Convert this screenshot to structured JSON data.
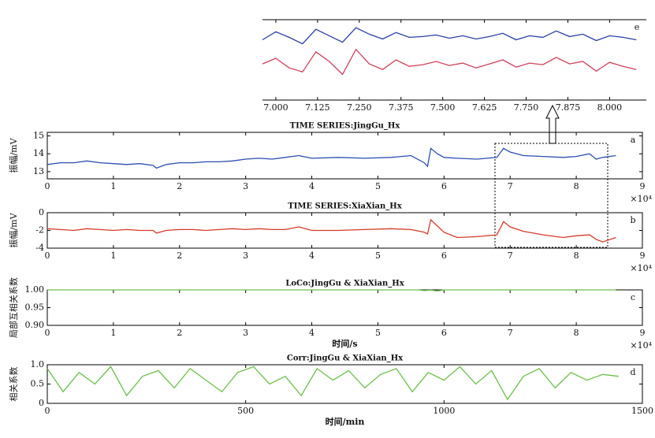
{
  "chart_data": [
    {
      "type": "line",
      "annotation": "e",
      "xlim": [
        6.96,
        8.11
      ],
      "xticks": [
        {
          "value": 7,
          "label": "7.000"
        },
        {
          "value": 7.125,
          "label": "7.125"
        },
        {
          "value": 7.25,
          "label": "7.250"
        },
        {
          "value": 7.375,
          "label": "7.375"
        },
        {
          "value": 7.5,
          "label": "7.500"
        },
        {
          "value": 7.625,
          "label": "7.625"
        },
        {
          "value": 7.75,
          "label": "7.750"
        },
        {
          "value": 7.875,
          "label": "7.875"
        },
        {
          "value": 8,
          "label": "8.000"
        }
      ],
      "ylim": [
        0,
        10
      ],
      "x": [
        6.96,
        7.0,
        7.04,
        7.08,
        7.12,
        7.16,
        7.2,
        7.24,
        7.28,
        7.32,
        7.36,
        7.4,
        7.44,
        7.48,
        7.52,
        7.56,
        7.6,
        7.64,
        7.68,
        7.72,
        7.76,
        7.8,
        7.84,
        7.88,
        7.92,
        7.96,
        8.0,
        8.04,
        8.08
      ],
      "series": [
        {
          "color": "#2b3fa6",
          "values": [
            7.5,
            8.5,
            7.8,
            7.0,
            8.8,
            8.0,
            7.2,
            9.0,
            8.2,
            7.6,
            8.4,
            7.8,
            7.9,
            8.1,
            7.7,
            8.0,
            7.6,
            7.9,
            8.3,
            7.5,
            8.0,
            7.8,
            8.6,
            7.9,
            8.2,
            7.4,
            8.0,
            7.8,
            7.5
          ]
        },
        {
          "color": "#d0405a",
          "values": [
            4.5,
            5.2,
            4.0,
            3.5,
            6.0,
            4.8,
            3.2,
            6.3,
            4.5,
            3.8,
            5.0,
            4.2,
            4.4,
            4.8,
            4.3,
            4.6,
            4.0,
            4.5,
            5.0,
            4.1,
            4.6,
            4.4,
            5.3,
            4.5,
            4.8,
            3.6,
            4.7,
            4.2,
            3.8
          ]
        }
      ]
    },
    {
      "type": "line",
      "title": "TIME SERIES:JingGu_Hx",
      "ylabel": "振幅/mV",
      "annotation": "a",
      "x_multiplier": "×10⁴",
      "xlim": [
        0,
        9
      ],
      "xticks": [
        0,
        1,
        2,
        3,
        4,
        5,
        6,
        7,
        8,
        9
      ],
      "ylim": [
        12.6,
        15.2
      ],
      "yticks": [
        13,
        14,
        15
      ],
      "x": [
        0,
        0.2,
        0.4,
        0.6,
        0.8,
        1.0,
        1.2,
        1.4,
        1.6,
        1.65,
        1.8,
        2.0,
        2.2,
        2.4,
        2.6,
        2.8,
        3.0,
        3.2,
        3.4,
        3.6,
        3.8,
        4.0,
        4.4,
        4.8,
        5.2,
        5.5,
        5.7,
        5.75,
        5.8,
        5.9,
        6.0,
        6.2,
        6.5,
        6.8,
        6.9,
        7.0,
        7.2,
        7.5,
        7.8,
        8.0,
        8.2,
        8.3,
        8.4,
        8.6
      ],
      "series": [
        {
          "color": "#2b4fb0",
          "values": [
            13.4,
            13.5,
            13.5,
            13.6,
            13.5,
            13.45,
            13.4,
            13.45,
            13.35,
            13.2,
            13.4,
            13.5,
            13.5,
            13.55,
            13.55,
            13.6,
            13.7,
            13.75,
            13.7,
            13.8,
            13.9,
            13.75,
            13.8,
            13.75,
            13.8,
            13.9,
            13.5,
            13.3,
            14.3,
            14.0,
            13.8,
            13.75,
            13.7,
            13.8,
            14.3,
            14.1,
            13.9,
            13.85,
            13.8,
            13.85,
            14.0,
            13.7,
            13.8,
            13.9
          ]
        }
      ]
    },
    {
      "type": "line",
      "title": "TIME SERIES:XiaXian_Hx",
      "ylabel": "振幅/mV",
      "annotation": "b",
      "x_multiplier": "×10⁴",
      "xlim": [
        0,
        9
      ],
      "xticks": [
        0,
        1,
        2,
        3,
        4,
        5,
        6,
        7,
        8,
        9
      ],
      "ylim": [
        -4,
        0
      ],
      "yticks": [
        -4,
        -2,
        0
      ],
      "x": [
        0,
        0.2,
        0.4,
        0.6,
        0.8,
        1.0,
        1.2,
        1.4,
        1.6,
        1.65,
        1.8,
        2.0,
        2.2,
        2.4,
        2.6,
        2.8,
        3.0,
        3.2,
        3.4,
        3.6,
        3.8,
        4.0,
        4.4,
        4.8,
        5.2,
        5.5,
        5.7,
        5.75,
        5.8,
        5.9,
        6.0,
        6.2,
        6.5,
        6.8,
        6.9,
        7.0,
        7.2,
        7.5,
        7.8,
        8.0,
        8.2,
        8.3,
        8.4,
        8.6
      ],
      "series": [
        {
          "color": "#d63a2a",
          "values": [
            -1.8,
            -1.9,
            -2.0,
            -1.8,
            -1.9,
            -2.0,
            -1.9,
            -2.0,
            -2.0,
            -2.3,
            -2.0,
            -1.9,
            -1.9,
            -2.0,
            -1.9,
            -1.8,
            -1.9,
            -1.8,
            -1.9,
            -1.9,
            -1.6,
            -2.0,
            -2.0,
            -1.9,
            -1.8,
            -1.9,
            -2.2,
            -2.4,
            -0.8,
            -1.5,
            -2.2,
            -2.8,
            -2.7,
            -2.5,
            -1.0,
            -1.6,
            -2.1,
            -2.5,
            -2.8,
            -2.6,
            -2.5,
            -3.0,
            -3.3,
            -2.8
          ]
        }
      ]
    },
    {
      "type": "line",
      "title": "LoCo:JingGu & XiaXian_Hx",
      "ylabel": "局部互相关系数",
      "xlabel": "时间/s",
      "annotation": "c",
      "x_multiplier": "×10⁴",
      "xlim": [
        0,
        9
      ],
      "xticks": [
        0,
        1,
        2,
        3,
        4,
        5,
        6,
        7,
        8,
        9
      ],
      "ylim": [
        0.9,
        1.0
      ],
      "yticks": [
        {
          "value": 0.9,
          "label": "0.90"
        },
        {
          "value": 0.95,
          "label": "0.95"
        },
        {
          "value": 1.0,
          "label": "1.00"
        }
      ],
      "x": [
        0,
        5.6,
        5.7,
        5.8,
        5.9,
        6.0,
        8.6
      ],
      "series": [
        {
          "color": "#6cbf4a",
          "values": [
            1.0,
            1.0,
            0.998,
            0.999,
            0.997,
            1.0,
            1.0
          ]
        }
      ]
    },
    {
      "type": "line",
      "title": "Corr:JingGu & XiaXian_Hx",
      "ylabel": "相关系数",
      "xlabel": "时间/min",
      "annotation": "d",
      "xlim": [
        0,
        1500
      ],
      "xticks": [
        0,
        500,
        1000,
        1500
      ],
      "ylim": [
        0,
        1
      ],
      "yticks": [
        0,
        0.5,
        {
          "value": 1,
          "label": "1.0"
        }
      ],
      "x": [
        0,
        40,
        80,
        120,
        160,
        200,
        240,
        280,
        320,
        360,
        400,
        440,
        480,
        520,
        560,
        600,
        640,
        680,
        720,
        760,
        800,
        840,
        880,
        920,
        960,
        1000,
        1040,
        1080,
        1120,
        1160,
        1200,
        1240,
        1280,
        1320,
        1360,
        1400,
        1440
      ],
      "series": [
        {
          "color": "#6cbf4a",
          "values": [
            0.9,
            0.3,
            0.8,
            0.5,
            0.95,
            0.2,
            0.7,
            0.85,
            0.4,
            0.9,
            0.6,
            0.3,
            0.8,
            0.95,
            0.5,
            0.7,
            0.2,
            0.9,
            0.6,
            0.85,
            0.4,
            0.75,
            0.9,
            0.3,
            0.8,
            0.6,
            0.95,
            0.5,
            0.85,
            0.1,
            0.7,
            0.9,
            0.4,
            0.8,
            0.6,
            0.75,
            0.7
          ]
        }
      ]
    }
  ]
}
